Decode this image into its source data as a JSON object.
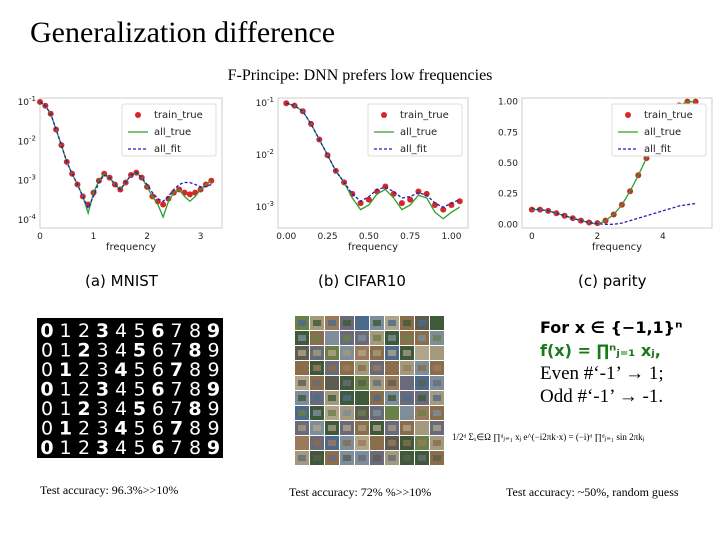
{
  "slide": {
    "title": "Generalization difference",
    "subtitle": "F-Principe: DNN prefers low frequencies"
  },
  "legend": {
    "entries": [
      "train_true",
      "all_true",
      "all_fit"
    ],
    "colors": {
      "train_true": "#d62728",
      "all_true": "#2ca02c",
      "all_fit": "#1f1fbf"
    }
  },
  "chart_data": [
    {
      "type": "line",
      "caption": "(a) MNIST",
      "xlabel": "frequency",
      "xticks": [
        "0",
        "1",
        "2",
        "3"
      ],
      "yticks": [
        "10^-1",
        "10^-2",
        "10^-3",
        "10^-4"
      ],
      "log_y": true,
      "x": [
        0,
        0.1,
        0.2,
        0.3,
        0.4,
        0.5,
        0.6,
        0.7,
        0.8,
        0.9,
        1.0,
        1.1,
        1.2,
        1.3,
        1.4,
        1.5,
        1.6,
        1.7,
        1.8,
        1.9,
        2.0,
        2.1,
        2.2,
        2.3,
        2.4,
        2.5,
        2.6,
        2.7,
        2.8,
        2.9,
        3.0,
        3.1,
        3.2
      ],
      "series": [
        {
          "name": "train_true",
          "values": [
            0.1,
            0.08,
            0.05,
            0.02,
            0.008,
            0.003,
            0.0015,
            0.0008,
            0.0004,
            0.00025,
            0.0005,
            0.001,
            0.0015,
            0.0012,
            0.0008,
            0.0006,
            0.0009,
            0.0014,
            0.0016,
            0.0012,
            0.0007,
            0.0004,
            0.0003,
            0.00025,
            0.00035,
            0.0005,
            0.0006,
            0.0005,
            0.00045,
            0.0005,
            0.0006,
            0.0008,
            0.001
          ]
        },
        {
          "name": "all_true",
          "values": [
            0.1,
            0.08,
            0.05,
            0.02,
            0.008,
            0.003,
            0.0015,
            0.0008,
            0.0004,
            0.00015,
            0.0005,
            0.001,
            0.0015,
            0.0012,
            0.0008,
            0.0006,
            0.0009,
            0.0014,
            0.0016,
            0.0012,
            0.0007,
            0.0004,
            0.00025,
            0.00012,
            0.0003,
            0.0005,
            0.0006,
            0.0004,
            0.0003,
            0.0004,
            0.0006,
            0.0008,
            0.001
          ]
        },
        {
          "name": "all_fit",
          "values": [
            0.1,
            0.08,
            0.05,
            0.02,
            0.008,
            0.003,
            0.0015,
            0.0008,
            0.0004,
            0.0002,
            0.0004,
            0.0009,
            0.0014,
            0.0012,
            0.0008,
            0.0006,
            0.0009,
            0.0014,
            0.0016,
            0.0012,
            0.0008,
            0.0005,
            0.00035,
            0.0003,
            0.0004,
            0.0006,
            0.0008,
            0.0009,
            0.0009,
            0.0008,
            0.0007,
            0.0007,
            0.0008
          ]
        }
      ]
    },
    {
      "type": "line",
      "caption": "(b) CIFAR10",
      "xlabel": "frequency",
      "xticks": [
        "0.00",
        "0.25",
        "0.50",
        "0.75",
        "1.00"
      ],
      "yticks": [
        "10^-1",
        "10^-2",
        "10^-3"
      ],
      "log_y": true,
      "x": [
        0,
        0.05,
        0.1,
        0.15,
        0.2,
        0.25,
        0.3,
        0.35,
        0.4,
        0.45,
        0.5,
        0.55,
        0.6,
        0.65,
        0.7,
        0.75,
        0.8,
        0.85,
        0.9,
        0.95,
        1.0,
        1.05
      ],
      "series": [
        {
          "name": "train_true",
          "values": [
            0.1,
            0.09,
            0.07,
            0.04,
            0.02,
            0.01,
            0.005,
            0.003,
            0.0018,
            0.0012,
            0.0014,
            0.002,
            0.0025,
            0.0018,
            0.0012,
            0.0014,
            0.002,
            0.0018,
            0.0011,
            0.0009,
            0.0011,
            0.0013
          ]
        },
        {
          "name": "all_true",
          "values": [
            0.1,
            0.09,
            0.07,
            0.04,
            0.02,
            0.01,
            0.005,
            0.003,
            0.0015,
            0.0009,
            0.0011,
            0.0018,
            0.0022,
            0.0015,
            0.0009,
            0.0011,
            0.0017,
            0.0015,
            0.0008,
            0.0006,
            0.0008,
            0.001
          ]
        },
        {
          "name": "all_fit",
          "values": [
            0.1,
            0.09,
            0.07,
            0.04,
            0.02,
            0.01,
            0.005,
            0.003,
            0.0018,
            0.0013,
            0.0016,
            0.0022,
            0.0024,
            0.002,
            0.0015,
            0.0016,
            0.0019,
            0.0017,
            0.0012,
            0.001,
            0.0012,
            0.0014
          ]
        }
      ]
    },
    {
      "type": "line",
      "caption": "(c) parity",
      "xlabel": "frequency",
      "xticks": [
        "0",
        "2",
        "4"
      ],
      "yticks": [
        "1.00",
        "0.75",
        "0.50",
        "0.25",
        "0.00"
      ],
      "log_y": false,
      "x": [
        0,
        0.25,
        0.5,
        0.75,
        1.0,
        1.25,
        1.5,
        1.75,
        2.0,
        2.25,
        2.5,
        2.75,
        3.0,
        3.25,
        3.5,
        3.75,
        4.0,
        4.25,
        4.5,
        4.75,
        5.0
      ],
      "series": [
        {
          "name": "train_true",
          "values": [
            0.12,
            0.12,
            0.11,
            0.09,
            0.07,
            0.05,
            0.03,
            0.015,
            0.01,
            0.03,
            0.08,
            0.16,
            0.27,
            0.4,
            0.54,
            0.68,
            0.8,
            0.9,
            0.97,
            1.0,
            1.0
          ]
        },
        {
          "name": "all_true",
          "values": [
            0.12,
            0.12,
            0.11,
            0.09,
            0.07,
            0.05,
            0.03,
            0.015,
            0.0,
            0.03,
            0.08,
            0.16,
            0.27,
            0.4,
            0.54,
            0.68,
            0.8,
            0.9,
            0.97,
            1.0,
            1.0
          ]
        },
        {
          "name": "all_fit",
          "values": [
            0.13,
            0.12,
            0.11,
            0.09,
            0.07,
            0.05,
            0.03,
            0.015,
            0.005,
            0.0,
            0.0,
            0.01,
            0.03,
            0.05,
            0.07,
            0.09,
            0.11,
            0.13,
            0.15,
            0.16,
            0.17
          ]
        }
      ]
    }
  ],
  "mnist": {
    "digits": "0123456789",
    "accuracy": "Test accuracy: 96.3%>>10%"
  },
  "cifar": {
    "accuracy": "Test accuracy: 72% %>>10%"
  },
  "parity": {
    "line1": "For x ∈ {−1,1}ⁿ",
    "line2": "f(x) = ∏ⁿⱼ₌₁ xⱼ,",
    "line3": "Even #‘-1’ → 1;",
    "line4": "Odd #‘-1’ → -1.",
    "formula": "1/2ᵈ Σₓ∈Ω ∏ᵈⱼ₌₁ xⱼ e^(−i2πk·x) = (−i)ᵈ ∏ᵈⱼ₌₁ sin 2πkⱼ",
    "accuracy": "Test accuracy: ~50%, random guess"
  }
}
